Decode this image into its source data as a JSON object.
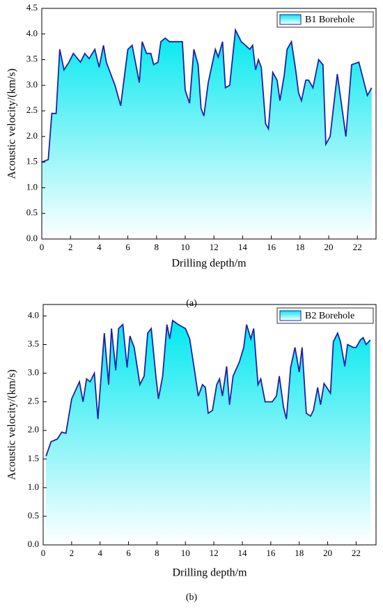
{
  "chart_data": [
    {
      "type": "area",
      "caption": "(a)",
      "x_label": "Drilling depth/m",
      "y_label": "Acoustic velocity/(km/s)",
      "legend": "upper right",
      "line_color": "#1f1fa8",
      "fill_color": "#00e8f0",
      "series": [
        {
          "name": "B1 Borehole",
          "x": [
            0,
            0.45,
            0.7,
            1.0,
            1.25,
            1.55,
            1.9,
            2.2,
            2.7,
            3.0,
            3.3,
            3.7,
            4.0,
            4.3,
            4.5,
            4.9,
            5.1,
            5.5,
            6.0,
            6.3,
            6.8,
            7.0,
            7.3,
            7.6,
            7.8,
            8.1,
            8.3,
            8.6,
            8.9,
            9.8,
            10.0,
            10.3,
            10.6,
            10.9,
            11.1,
            11.3,
            11.6,
            12.1,
            12.3,
            12.6,
            12.8,
            13.1,
            13.5,
            13.9,
            14.2,
            14.5,
            14.7,
            14.9,
            15.1,
            15.3,
            15.6,
            15.8,
            16.1,
            16.4,
            16.6,
            16.9,
            17.1,
            17.4,
            17.7,
            17.9,
            18.1,
            18.4,
            18.6,
            18.9,
            19.3,
            19.6,
            19.8,
            20.1,
            20.6,
            21.2,
            21.6,
            22.1,
            22.7,
            23.0
          ],
          "values": [
            1.5,
            1.55,
            2.45,
            2.45,
            3.7,
            3.3,
            3.45,
            3.62,
            3.45,
            3.62,
            3.52,
            3.7,
            3.35,
            3.78,
            3.45,
            3.15,
            3.0,
            2.6,
            3.7,
            3.78,
            3.05,
            3.85,
            3.62,
            3.62,
            3.4,
            3.45,
            3.85,
            3.92,
            3.85,
            3.85,
            2.9,
            2.65,
            3.7,
            3.4,
            2.55,
            2.4,
            3.05,
            3.7,
            3.55,
            3.85,
            2.95,
            3.0,
            4.08,
            3.85,
            3.78,
            3.7,
            3.78,
            3.3,
            3.5,
            3.35,
            2.25,
            2.15,
            3.25,
            3.1,
            2.7,
            3.2,
            3.7,
            3.85,
            3.3,
            2.85,
            2.7,
            3.1,
            3.1,
            2.95,
            3.5,
            3.4,
            1.85,
            2.0,
            3.22,
            2.0,
            3.4,
            3.45,
            2.8,
            2.95
          ]
        }
      ],
      "xlim": [
        0,
        23.3
      ],
      "xticks": [
        0,
        2,
        4,
        6,
        8,
        10,
        12,
        14,
        16,
        18,
        20,
        22
      ],
      "ylim": [
        0,
        4.5
      ],
      "yticks": [
        {
          "value": 0,
          "label": "0.0"
        },
        0.5,
        {
          "value": 1,
          "label": "1.0"
        },
        1.5,
        {
          "value": 2,
          "label": "2.0"
        },
        2.5,
        {
          "value": 3,
          "label": "3.0"
        },
        3.5,
        {
          "value": 4,
          "label": "4.0"
        },
        4.5
      ]
    },
    {
      "type": "area",
      "caption": "(b)",
      "x_label": "Drilling depth/m",
      "y_label": "Acoustic velocity/(km/s)",
      "legend": "upper right",
      "line_color": "#1f1fa8",
      "fill_color": "#00e8f0",
      "series": [
        {
          "name": "B2 Borehole",
          "x": [
            0.2,
            0.55,
            1.0,
            1.3,
            1.6,
            2.0,
            2.55,
            2.8,
            3.05,
            3.3,
            3.6,
            3.85,
            4.3,
            4.6,
            4.8,
            5.1,
            5.3,
            5.6,
            5.9,
            6.1,
            6.4,
            6.8,
            7.1,
            7.35,
            7.6,
            7.9,
            8.1,
            8.4,
            8.7,
            8.9,
            9.1,
            9.5,
            10.0,
            10.3,
            10.7,
            10.9,
            11.2,
            11.4,
            11.6,
            11.9,
            12.2,
            12.4,
            12.6,
            12.9,
            13.1,
            13.35,
            13.8,
            14.1,
            14.3,
            14.6,
            14.8,
            15.1,
            15.3,
            15.6,
            16.1,
            16.4,
            16.6,
            16.9,
            17.1,
            17.4,
            17.7,
            18.0,
            18.2,
            18.5,
            18.8,
            19.0,
            19.3,
            19.5,
            19.75,
            20.2,
            20.4,
            20.7,
            20.9,
            21.2,
            21.4,
            21.8,
            22.0,
            22.3,
            22.5,
            22.7,
            23.0
          ],
          "values": [
            1.55,
            1.8,
            1.85,
            1.97,
            1.95,
            2.55,
            2.85,
            2.5,
            2.9,
            2.85,
            3.0,
            2.2,
            3.7,
            2.8,
            3.78,
            3.05,
            3.78,
            3.85,
            3.1,
            3.65,
            3.45,
            2.8,
            2.95,
            3.7,
            3.78,
            3.0,
            2.55,
            2.95,
            3.85,
            3.6,
            3.92,
            3.85,
            3.78,
            3.6,
            2.95,
            2.6,
            2.8,
            2.75,
            2.3,
            2.35,
            2.8,
            2.9,
            2.6,
            3.12,
            2.45,
            2.95,
            3.2,
            3.45,
            3.85,
            3.6,
            3.78,
            2.8,
            2.9,
            2.5,
            2.5,
            2.6,
            2.95,
            2.4,
            2.2,
            3.1,
            3.45,
            3.02,
            3.45,
            2.3,
            2.25,
            2.35,
            2.75,
            2.45,
            2.82,
            2.65,
            3.55,
            3.7,
            3.55,
            3.12,
            3.5,
            3.45,
            3.45,
            3.58,
            3.62,
            3.5,
            3.58
          ]
        }
      ],
      "xlim": [
        0,
        23.4
      ],
      "xticks": [
        0,
        2,
        4,
        6,
        8,
        10,
        12,
        14,
        16,
        18,
        20,
        22
      ],
      "ylim": [
        0,
        4.2
      ],
      "yticks": [
        {
          "value": 0,
          "label": "0.0"
        },
        0.5,
        {
          "value": 1,
          "label": "1.0"
        },
        1.5,
        {
          "value": 2,
          "label": "2.0"
        },
        2.5,
        {
          "value": 3,
          "label": "3.0"
        },
        3.5,
        {
          "value": 4,
          "label": "4.0"
        }
      ]
    }
  ]
}
